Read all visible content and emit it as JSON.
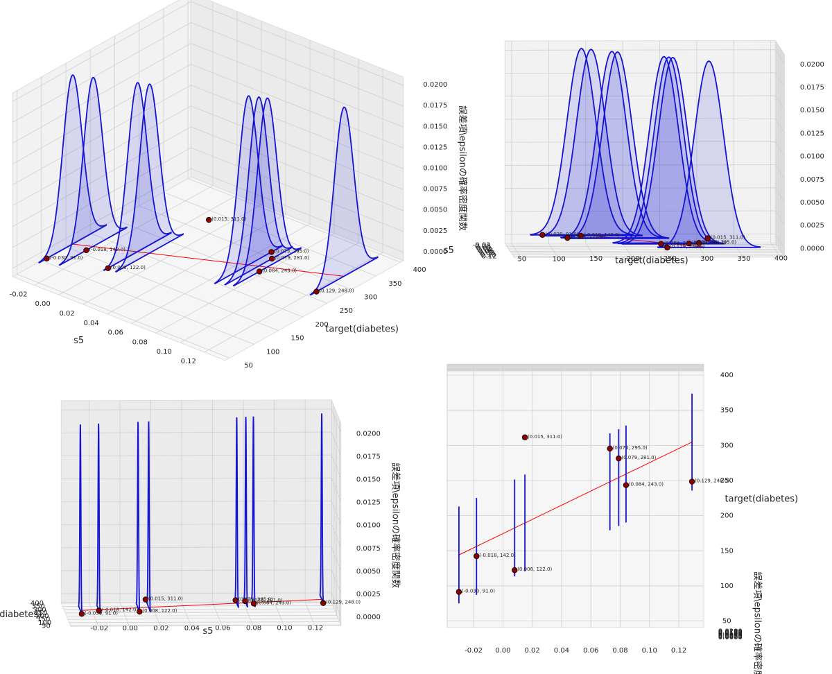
{
  "chart_data": {
    "type": "scatter3d",
    "xlabel": "s5",
    "ylabel": "target(diabetes)",
    "zlabel": "誤差項\\epsilonの確率密度関数",
    "x": [
      -0.03,
      -0.018,
      0.008,
      0.015,
      0.073,
      0.079,
      0.084,
      0.129
    ],
    "values": [
      91,
      142,
      122,
      311,
      295,
      281,
      243,
      248
    ],
    "value_labels": [
      "(-0.030, 91.0)",
      "(-0.018, 142.0)",
      "(0.008, 122.0)",
      "(0.015, 311.0)",
      "(0.073, 295.0)",
      "(0.079, 281.0)",
      "(0.084, 243.0)",
      "(0.129, 248.0)"
    ],
    "point_color": "#8b0000",
    "regression": {
      "intercept": 174,
      "slope": 1010,
      "color": "#ff0000"
    },
    "epsilon_sd": 19.7,
    "curve_color": "#1414d2",
    "xlim": [
      -0.038,
      0.137
    ],
    "ylim": [
      41,
      406
    ],
    "zlim": [
      -0.001,
      0.021
    ],
    "xticks": [
      -0.02,
      {
        "value": 0,
        "label": "0.00"
      },
      0.02,
      0.04,
      0.06,
      0.08,
      {
        "value": 0.1,
        "label": "0.10"
      },
      0.12
    ],
    "yticks": [
      50,
      100,
      150,
      200,
      250,
      300,
      350,
      400
    ],
    "zticks": [
      {
        "value": 0,
        "label": "0.0000"
      },
      {
        "value": 0.0025,
        "label": "0.0025"
      },
      {
        "value": 0.005,
        "label": "0.0050"
      },
      {
        "value": 0.0075,
        "label": "0.0075"
      },
      {
        "value": 0.01,
        "label": "0.0100"
      },
      {
        "value": 0.0125,
        "label": "0.0125"
      },
      {
        "value": 0.015,
        "label": "0.0150"
      },
      {
        "value": 0.0175,
        "label": "0.0175"
      },
      {
        "value": 0.02,
        "label": "0.0200"
      }
    ],
    "grid": true,
    "views": [
      {
        "elev": 28,
        "azim": -50
      },
      {
        "elev": 3,
        "azim": -2
      },
      {
        "elev": 5,
        "azim": -92
      },
      {
        "elev": 88,
        "azim": -90
      }
    ]
  }
}
